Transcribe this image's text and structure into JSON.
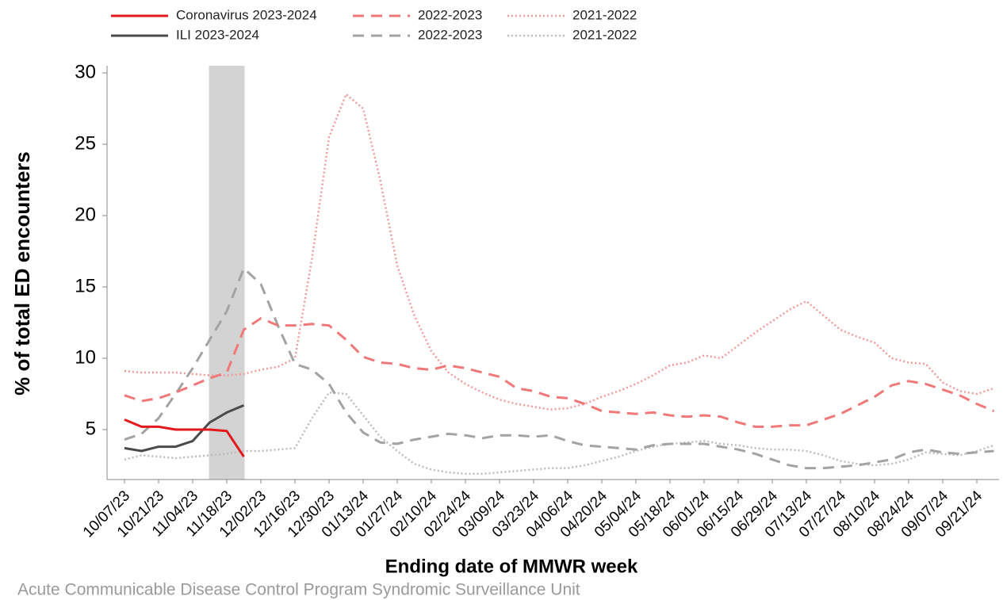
{
  "chart_data": {
    "type": "line",
    "y_label": "% of total ED encounters",
    "x_label": "Ending date of MMWR week",
    "source": "Acute Communicable Disease Control Program Syndromic Surveillance Unit",
    "categories": [
      "10/07/23",
      null,
      "10/21/23",
      null,
      "11/04/23",
      null,
      "11/18/23",
      null,
      "12/02/23",
      null,
      "12/16/23",
      null,
      "12/30/23",
      null,
      "01/13/24",
      null,
      "01/27/24",
      null,
      "02/10/24",
      null,
      "02/24/24",
      null,
      "03/09/24",
      null,
      "03/23/24",
      null,
      "04/06/24",
      null,
      "04/20/24",
      null,
      "05/04/24",
      null,
      "05/18/24",
      null,
      "06/01/24",
      null,
      "06/15/24",
      null,
      "06/29/24",
      null,
      "07/13/24",
      null,
      "07/27/24",
      null,
      "08/10/24",
      null,
      "08/24/24",
      null,
      "09/07/24",
      null,
      "09/21/24",
      null
    ],
    "series": [
      {
        "name": "Coronavirus 2023-2024",
        "color": "#e3191c",
        "style": "solid",
        "values": [
          5.7,
          5.2,
          5.2,
          5.0,
          5.0,
          5.0,
          4.9,
          3.1,
          null,
          null,
          null,
          null,
          null,
          null,
          null,
          null,
          null,
          null,
          null,
          null,
          null,
          null,
          null,
          null,
          null,
          null,
          null,
          null,
          null,
          null,
          null,
          null,
          null,
          null,
          null,
          null,
          null,
          null,
          null,
          null,
          null,
          null,
          null,
          null,
          null,
          null,
          null,
          null,
          null,
          null,
          null,
          null
        ]
      },
      {
        "name": "ILI 2023-2024",
        "color": "#4a4a4a",
        "style": "solid",
        "values": [
          3.7,
          3.5,
          3.8,
          3.8,
          4.2,
          5.5,
          6.2,
          6.7,
          null,
          null,
          null,
          null,
          null,
          null,
          null,
          null,
          null,
          null,
          null,
          null,
          null,
          null,
          null,
          null,
          null,
          null,
          null,
          null,
          null,
          null,
          null,
          null,
          null,
          null,
          null,
          null,
          null,
          null,
          null,
          null,
          null,
          null,
          null,
          null,
          null,
          null,
          null,
          null,
          null,
          null,
          null,
          null
        ]
      },
      {
        "name": "2022-2023",
        "color": "#f07878",
        "style": "dashed",
        "values": [
          7.4,
          7.0,
          7.2,
          7.6,
          8.1,
          8.6,
          9.0,
          12.0,
          12.8,
          12.3,
          12.3,
          12.4,
          12.3,
          11.3,
          10.1,
          9.7,
          9.6,
          9.3,
          9.2,
          9.5,
          9.3,
          9.0,
          8.7,
          7.9,
          7.7,
          7.3,
          7.2,
          6.8,
          6.3,
          6.2,
          6.1,
          6.2,
          6.0,
          5.9,
          6.0,
          5.9,
          5.5,
          5.2,
          5.2,
          5.3,
          5.3,
          5.7,
          6.1,
          6.7,
          7.3,
          8.1,
          8.4,
          8.2,
          7.8,
          7.4,
          6.8,
          6.3
        ]
      },
      {
        "name": "2022-2023",
        "color": "#a3a3a3",
        "style": "dashed",
        "values": [
          4.3,
          4.7,
          5.8,
          7.5,
          9.3,
          11.3,
          13.3,
          16.3,
          15.2,
          12.3,
          9.6,
          9.2,
          8.2,
          6.2,
          4.8,
          4.1,
          4.0,
          4.3,
          4.5,
          4.7,
          4.6,
          4.4,
          4.6,
          4.6,
          4.5,
          4.6,
          4.2,
          3.9,
          3.8,
          3.7,
          3.6,
          3.9,
          4.0,
          4.0,
          4.0,
          3.8,
          3.6,
          3.3,
          2.9,
          2.5,
          2.3,
          2.3,
          2.4,
          2.5,
          2.7,
          2.9,
          3.4,
          3.6,
          3.4,
          3.3,
          3.4,
          3.5
        ]
      },
      {
        "name": "2021-2022",
        "color": "#f29a9a",
        "style": "dotted",
        "values": [
          9.1,
          9.0,
          9.0,
          9.0,
          8.9,
          8.8,
          8.8,
          8.9,
          9.2,
          9.4,
          10.0,
          17.0,
          25.5,
          28.5,
          27.5,
          22.5,
          16.5,
          13.0,
          10.5,
          9.0,
          8.2,
          7.6,
          7.1,
          6.8,
          6.6,
          6.4,
          6.5,
          6.8,
          7.3,
          7.7,
          8.2,
          8.8,
          9.5,
          9.7,
          10.2,
          10.0,
          10.9,
          11.8,
          12.6,
          13.4,
          14.0,
          13.0,
          12.0,
          11.5,
          11.1,
          10.0,
          9.7,
          9.6,
          8.3,
          7.7,
          7.5,
          7.9
        ]
      },
      {
        "name": "2021-2022",
        "color": "#bcbcbc",
        "style": "dotted",
        "values": [
          2.9,
          3.2,
          3.1,
          3.0,
          3.1,
          3.2,
          3.3,
          3.5,
          3.5,
          3.6,
          3.7,
          5.8,
          7.6,
          7.5,
          6.0,
          4.5,
          3.5,
          2.6,
          2.2,
          2.0,
          1.9,
          1.9,
          2.0,
          2.1,
          2.2,
          2.3,
          2.3,
          2.5,
          2.8,
          3.1,
          3.5,
          3.8,
          4.0,
          4.1,
          4.2,
          4.0,
          3.9,
          3.7,
          3.6,
          3.6,
          3.5,
          3.2,
          2.8,
          2.6,
          2.5,
          2.6,
          2.9,
          3.4,
          3.3,
          3.2,
          3.5,
          3.9
        ]
      }
    ],
    "ylim": [
      1.5,
      30.5
    ],
    "yticks": [
      5,
      10,
      15,
      20,
      25,
      30
    ],
    "grid": false
  }
}
